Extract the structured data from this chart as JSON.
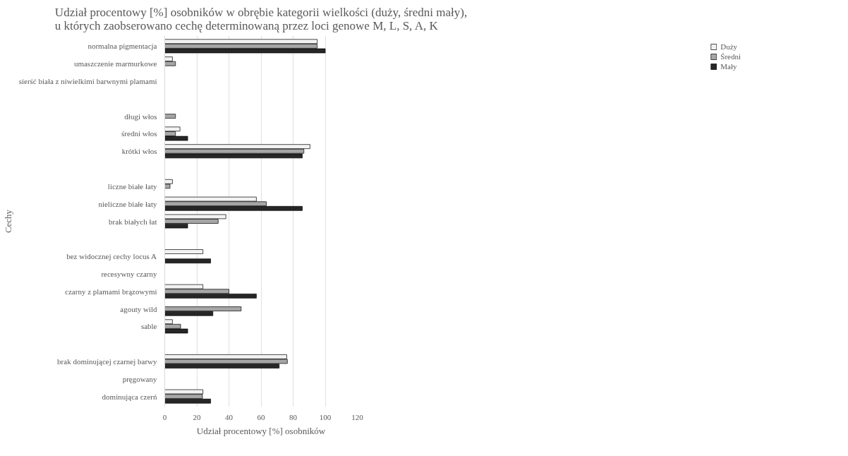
{
  "chart_data": {
    "type": "bar",
    "orientation": "horizontal",
    "title": "Udział procentowy [%] osobników w obrębie kategorii wielkości (duży, średni mały), u których zaobserowano cechę determinowaną przez loci genowe M, L, S, A, K",
    "xlabel": "Udział procentowy [%] osobników",
    "ylabel": "Cechy",
    "categories": [
      "normalna pigmentacja",
      "umaszczenie marmurkowe",
      "sierść biała z niwielkimi barwnymi plamami",
      null,
      "długi włos",
      "średni włos",
      "krótki włos",
      null,
      "liczne białe łaty",
      "nieliczne białe łaty",
      "brak białych łat",
      null,
      "bez widocznej cechy locus A",
      "recesywny czarny",
      "czarny z plamami brązowymi",
      "agouty wild",
      "sable",
      null,
      "brak dominującej czarnej barwy",
      "pręgowany",
      "dominująca czerń"
    ],
    "series": [
      {
        "name": "Duży",
        "color": "#f2f2f2",
        "values": [
          95,
          4.8,
          0,
          null,
          0,
          9.5,
          90.5,
          null,
          4.8,
          57.1,
          38.1,
          null,
          23.8,
          0,
          23.8,
          0,
          4.8,
          null,
          76,
          0,
          23.8
        ]
      },
      {
        "name": "Średni",
        "color": "#a6a6a6",
        "values": [
          95,
          6.7,
          0,
          null,
          6.7,
          6.7,
          86.7,
          null,
          3.3,
          63.3,
          33.3,
          null,
          0,
          0,
          40,
          47.6,
          9.9,
          null,
          76.4,
          0,
          23.5
        ]
      },
      {
        "name": "Mały",
        "color": "#262626",
        "values": [
          100,
          0,
          0,
          null,
          0,
          14.3,
          85.7,
          null,
          0,
          85.7,
          14.3,
          null,
          28.6,
          0,
          57.1,
          30,
          14.3,
          null,
          71.3,
          0,
          28.6
        ]
      }
    ],
    "xlim": [
      0,
      120
    ],
    "xticks": [
      0,
      20,
      40,
      60,
      80,
      100,
      120
    ],
    "grid": "x",
    "legend": "right"
  }
}
